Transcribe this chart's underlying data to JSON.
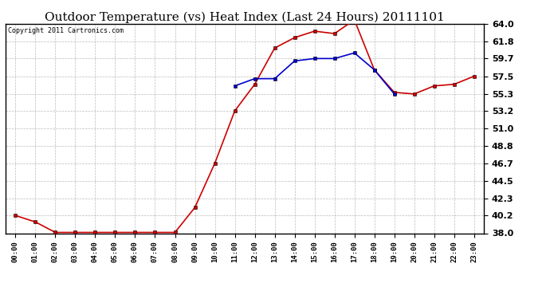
{
  "title": "Outdoor Temperature (vs) Heat Index (Last 24 Hours) 20111101",
  "copyright": "Copyright 2011 Cartronics.com",
  "x_labels": [
    "00:00",
    "01:00",
    "02:00",
    "03:00",
    "04:00",
    "05:00",
    "06:00",
    "07:00",
    "08:00",
    "09:00",
    "10:00",
    "11:00",
    "12:00",
    "13:00",
    "14:00",
    "15:00",
    "16:00",
    "17:00",
    "18:00",
    "19:00",
    "20:00",
    "21:00",
    "22:00",
    "23:00"
  ],
  "temp_values": [
    40.2,
    39.4,
    38.1,
    38.1,
    38.1,
    38.1,
    38.1,
    38.1,
    38.1,
    41.2,
    46.7,
    53.2,
    56.5,
    61.0,
    62.3,
    63.1,
    62.8,
    64.5,
    58.3,
    55.5,
    55.3,
    56.3,
    56.5,
    57.5
  ],
  "heat_values": [
    null,
    null,
    null,
    null,
    null,
    null,
    null,
    null,
    null,
    null,
    null,
    56.3,
    57.2,
    57.2,
    59.4,
    59.7,
    59.7,
    60.4,
    58.3,
    55.3,
    null,
    null,
    null,
    null
  ],
  "temp_color": "#cc0000",
  "heat_color": "#0000cc",
  "bg_color": "#ffffff",
  "grid_color": "#aaaaaa",
  "ylim_min": 38.0,
  "ylim_max": 64.0,
  "yticks": [
    38.0,
    40.2,
    42.3,
    44.5,
    46.7,
    48.8,
    51.0,
    53.2,
    55.3,
    57.5,
    59.7,
    61.8,
    64.0
  ],
  "title_fontsize": 11,
  "copyright_fontsize": 6,
  "marker_size": 3.0,
  "linewidth": 1.2
}
